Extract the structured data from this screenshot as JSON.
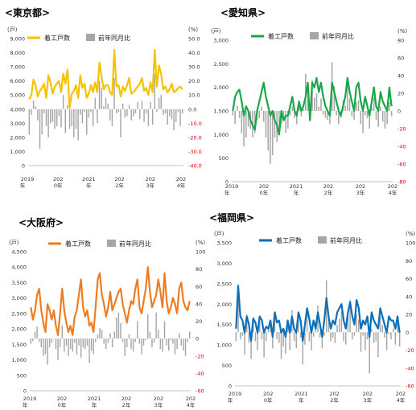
{
  "chart_data": [
    {
      "type": "bar+line",
      "title": "<東京都>",
      "legend": [
        "着工戸数",
        "前年同月比"
      ],
      "left_unit": "(戸)",
      "right_unit": "(%)",
      "left_ticks": [
        "0",
        "1,000",
        "2,000",
        "3,000",
        "4,000",
        "5,000",
        "6,000",
        "7,000",
        "8,000",
        "9,000"
      ],
      "ylim_left": [
        0,
        9000
      ],
      "right_ticks": [
        "50.0",
        "40.0",
        "30.0",
        "20.0",
        "10.0",
        "0.0",
        "-10.0",
        "-20.0",
        "-30.0",
        "-40.0"
      ],
      "ylim_right": [
        -40,
        50
      ],
      "x_labels": [
        [
          "2019",
          "年"
        ],
        [
          "202",
          "0年"
        ],
        [
          "2021",
          "年"
        ],
        [
          "202",
          "2年"
        ],
        [
          "202",
          "3年"
        ],
        [
          "202",
          "4年"
        ]
      ],
      "line_color": "#f6c200",
      "bar_color": "#a6a6a6",
      "series": [
        {
          "name": "着工戸数",
          "values": [
            4700,
            5000,
            6100,
            5700,
            4900,
            5300,
            5500,
            5800,
            4800,
            6400,
            5900,
            5100,
            5600,
            5800,
            6000,
            5200,
            6500,
            5800,
            6800,
            4100,
            5100,
            5300,
            5700,
            4800,
            6400,
            5500,
            5800,
            4800,
            5100,
            5700,
            5200,
            5900,
            5200,
            7300,
            6300,
            5400,
            5700,
            5700,
            5200,
            5000,
            8200,
            5600,
            5700,
            4900,
            5600,
            5300,
            5700,
            6200,
            5100,
            5200,
            5400,
            5600,
            5800,
            6200,
            5300,
            5500,
            5000,
            5900,
            5200,
            8200,
            5600,
            7100,
            6500,
            5400,
            5600,
            5200,
            5400,
            5800,
            5200,
            5300,
            5500,
            5600,
            5400
          ]
        },
        {
          "name": "前年同月比",
          "values": [
            -18,
            -4,
            6,
            2,
            -8,
            -28,
            -18,
            -3,
            -12,
            -20,
            -10,
            -9,
            -14,
            -12,
            -5,
            -13,
            10,
            -17,
            3,
            -14,
            -12,
            -20,
            -14,
            -22,
            -4,
            -10,
            -2,
            -18,
            -6,
            -2,
            -12,
            8,
            -10,
            20,
            15,
            2,
            8,
            4,
            -8,
            -12,
            22,
            -3,
            -2,
            -20,
            4,
            -6,
            -5,
            3,
            -8,
            -5,
            -3,
            5,
            -7,
            6,
            -9,
            -3,
            -12,
            5,
            -11,
            25,
            -2,
            8,
            10,
            -4,
            -3,
            -11,
            -5,
            -7,
            -15,
            -9,
            -2,
            -12,
            -3
          ]
        }
      ]
    },
    {
      "type": "bar+line",
      "title": "<愛知県>",
      "legend": [
        "着工戸数",
        "前年同月比"
      ],
      "left_unit": "(戸)",
      "right_unit": "(%)",
      "left_ticks": [
        "0",
        "500",
        "1,000",
        "1,500",
        "2,000",
        "2,500",
        "3,000"
      ],
      "ylim_left": [
        0,
        3000
      ],
      "right_ticks": [
        "80",
        "60",
        "40",
        "20",
        "0",
        "-20",
        "-40",
        "-60",
        "-80"
      ],
      "ylim_right": [
        -80,
        80
      ],
      "x_labels": [
        [
          "2019",
          "年"
        ],
        [
          "202",
          "0年"
        ],
        [
          "2021",
          "年"
        ],
        [
          "202",
          "2年"
        ],
        [
          "202",
          "3年"
        ],
        [
          "202",
          "4年"
        ]
      ],
      "line_color": "#1aa64a",
      "bar_color": "#a6a6a6",
      "series": [
        {
          "name": "着工戸数",
          "values": [
            1500,
            1800,
            1900,
            1950,
            1700,
            1400,
            1600,
            1500,
            1300,
            1200,
            1100,
            1500,
            1700,
            1900,
            2100,
            1800,
            1600,
            1400,
            1500,
            1300,
            1200,
            1000,
            1500,
            1300,
            1400,
            1400,
            1600,
            1800,
            1500,
            1400,
            1700,
            1500,
            1600,
            1800,
            2100,
            1300,
            2100,
            2000,
            2200,
            1900,
            2100,
            1800,
            1600,
            1500,
            1400,
            2100,
            1900,
            1700,
            1500,
            1400,
            1600,
            1800,
            2200,
            1900,
            1700,
            1500,
            2000,
            2100,
            1700,
            1500,
            1800,
            1600,
            1400,
            1700,
            2000,
            1600,
            1500,
            1900,
            1700,
            1600,
            1500,
            2000,
            1600
          ]
        },
        {
          "name": "前年同月比",
          "values": [
            -5,
            -15,
            6,
            -8,
            -25,
            -40,
            -30,
            -18,
            -20,
            -30,
            -25,
            -10,
            -8,
            5,
            -12,
            -30,
            -45,
            -60,
            -50,
            -30,
            -35,
            -20,
            -15,
            -10,
            -25,
            -20,
            -5,
            5,
            -8,
            -15,
            8,
            -6,
            2,
            42,
            32,
            -5,
            35,
            15,
            20,
            5,
            14,
            -4,
            -8,
            -10,
            -15,
            55,
            28,
            -5,
            -15,
            -8,
            12,
            6,
            35,
            14,
            -6,
            -10,
            10,
            12,
            -15,
            -25,
            -5,
            -8,
            -20,
            4,
            15,
            -10,
            -18,
            5,
            -12,
            -20,
            -15,
            10,
            -6
          ]
        }
      ]
    },
    {
      "type": "bar+line",
      "title": "<大阪府>",
      "legend": [
        "着工戸数",
        "前年同月比"
      ],
      "left_unit": "(戸)",
      "right_unit": "(%)",
      "left_ticks": [
        "0",
        "500",
        "1,000",
        "1,500",
        "2,000",
        "2,500",
        "3,000",
        "3,500",
        "4,000",
        "4,500"
      ],
      "ylim_left": [
        0,
        4500
      ],
      "right_ticks": [
        "100",
        "80",
        "60",
        "40",
        "20",
        "0",
        "-20",
        "-40",
        "-60"
      ],
      "ylim_right": [
        -60,
        100
      ],
      "x_labels": [
        [
          "2019",
          "年"
        ],
        [
          "202",
          "0年"
        ],
        [
          "2021",
          "年"
        ],
        [
          "202",
          "2年"
        ],
        [
          "202",
          "3年"
        ],
        [
          "202",
          "4年"
        ]
      ],
      "line_color": "#ee7d22",
      "bar_color": "#a6a6a6",
      "series": [
        {
          "name": "着工戸数",
          "values": [
            2700,
            2300,
            2600,
            3100,
            3300,
            2600,
            2200,
            1900,
            2800,
            2600,
            2300,
            2600,
            2100,
            1800,
            2500,
            3300,
            2600,
            2200,
            1900,
            2100,
            1800,
            2400,
            2600,
            3100,
            3600,
            2700,
            2400,
            2600,
            2100,
            2200,
            1900,
            2700,
            3600,
            3800,
            3100,
            2800,
            2400,
            2700,
            3200,
            2600,
            2800,
            3000,
            3200,
            3300,
            2800,
            2500,
            2200,
            2600,
            2900,
            2800,
            3300,
            3600,
            2700,
            2500,
            2900,
            3300,
            4000,
            3200,
            2700,
            2900,
            3100,
            3600,
            3200,
            2700,
            3800,
            2900,
            2500,
            2700,
            3000,
            2800,
            2500,
            3300,
            3500,
            2900,
            2700,
            2600,
            2900
          ]
        },
        {
          "name": "前年同月比",
          "values": [
            -6,
            -3,
            8,
            14,
            -4,
            -10,
            -20,
            -18,
            -30,
            -10,
            -5,
            0,
            -12,
            -25,
            -10,
            15,
            -15,
            -8,
            -20,
            -12,
            -15,
            -5,
            -18,
            -8,
            -22,
            -10,
            -12,
            -8,
            -28,
            -14,
            -18,
            -4,
            5,
            12,
            10,
            -6,
            -12,
            -5,
            6,
            -10,
            8,
            24,
            30,
            18,
            -4,
            -20,
            -10,
            5,
            -12,
            -15,
            -4,
            20,
            -6,
            -18,
            -8,
            -2,
            28,
            8,
            -10,
            -5,
            30,
            10,
            -12,
            -15,
            20,
            -8,
            -14,
            -2,
            -6,
            -18,
            -12,
            6,
            -8,
            -14,
            -20,
            -4,
            8
          ]
        }
      ]
    },
    {
      "type": "bar+line",
      "title": "<福岡県>",
      "legend": [
        "着工戸数",
        "前年同月比"
      ],
      "left_unit": "(戸)",
      "right_unit": "(%)",
      "left_ticks": [
        "0",
        "500",
        "1,000",
        "1,500",
        "2,000",
        "2,500",
        "3,000",
        "3,500"
      ],
      "ylim_left": [
        0,
        3500
      ],
      "right_ticks": [
        "100",
        "80",
        "60",
        "40",
        "20",
        "0",
        "-20",
        "-40",
        "-60"
      ],
      "ylim_right": [
        -60,
        100
      ],
      "x_labels": [
        [
          "2019",
          "年"
        ],
        [
          "202",
          "0年"
        ],
        [
          "2021",
          "年"
        ],
        [
          "202",
          "2年"
        ],
        [
          "202",
          "3年"
        ],
        [
          "202",
          "4年"
        ]
      ],
      "line_color": "#0a6eb9",
      "bar_color": "#a6a6a6",
      "series": [
        {
          "name": "着工戸数",
          "values": [
            1400,
            2450,
            1700,
            1600,
            1300,
            1700,
            1500,
            1100,
            1650,
            1550,
            1300,
            1700,
            1600,
            1300,
            1450,
            1400,
            1600,
            1200,
            1800,
            1550,
            1600,
            1300,
            1400,
            1200,
            1600,
            1300,
            1700,
            1400,
            1300,
            1800,
            1600,
            1100,
            1500,
            1900,
            1650,
            1300,
            1600,
            1400,
            1800,
            1500,
            1200,
            1600,
            2150,
            1700,
            1400,
            1600,
            1500,
            1800,
            1900,
            2000,
            1600,
            1400,
            1800,
            2050,
            1700,
            1500,
            2100,
            1900,
            1400,
            1600,
            1500,
            1700,
            1200,
            1800,
            1600,
            1500,
            1400,
            1900,
            1700,
            1500,
            1300,
            1700,
            1600,
            1600,
            1400,
            1700,
            1300
          ]
        },
        {
          "name": "前年同月比",
          "values": [
            -10,
            50,
            -8,
            -4,
            -25,
            20,
            -12,
            -30,
            15,
            -10,
            -20,
            12,
            -8,
            -28,
            -10,
            5,
            10,
            -18,
            20,
            -8,
            -12,
            -30,
            -16,
            -24,
            8,
            -20,
            25,
            -10,
            -18,
            15,
            -6,
            -36,
            -14,
            22,
            -10,
            -20,
            -5,
            12,
            30,
            -6,
            -18,
            -4,
            58,
            18,
            -10,
            -6,
            -12,
            8,
            15,
            24,
            -10,
            -14,
            18,
            36,
            -8,
            -4,
            20,
            14,
            -22,
            -4,
            -20,
            -8,
            -46,
            4,
            -12,
            -10,
            -28,
            18,
            8,
            -6,
            -20,
            -2,
            -8,
            4,
            -14,
            10,
            -16
          ]
        }
      ]
    }
  ]
}
